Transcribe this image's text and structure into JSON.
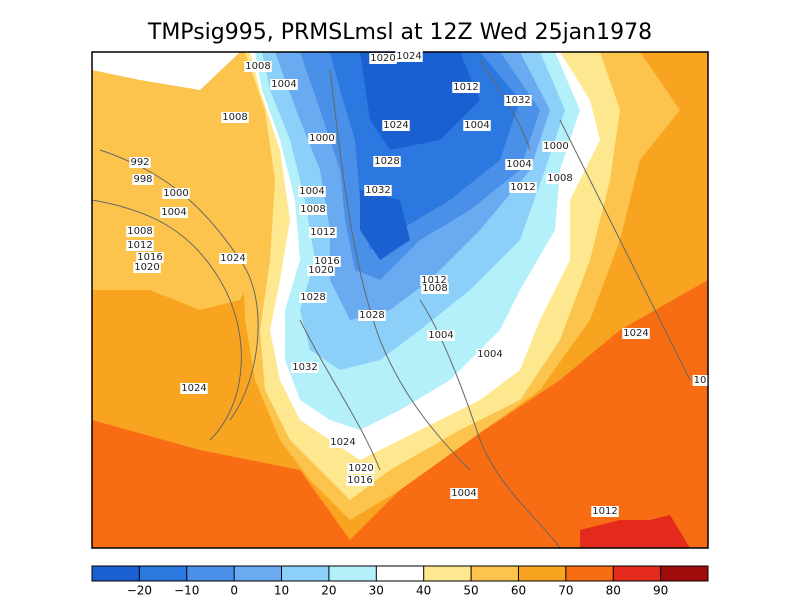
{
  "title": "TMPsig995, PRMSLmsl at 12Z Wed 25jan1978",
  "isobar_labels": [
    "1008",
    "1004",
    "1020",
    "1024",
    "1012",
    "1032",
    "1008",
    "1024",
    "1004",
    "1000",
    "1000",
    "992",
    "1028",
    "1004",
    "998",
    "1008",
    "1000",
    "1012",
    "1032",
    "1004",
    "1004",
    "1008",
    "1012",
    "1008",
    "1012",
    "1016",
    "1020",
    "1024",
    "1016",
    "1020",
    "1012",
    "1008",
    "1028",
    "1028",
    "1004",
    "1024",
    "1004",
    "1032",
    "1024",
    "10",
    "1024",
    "1020",
    "1016",
    "1004",
    "1012"
  ],
  "colorbar": {
    "levels": [
      {
        "value": -20,
        "label": "−20"
      },
      {
        "value": -10,
        "label": "−10"
      },
      0,
      10,
      20,
      30,
      40,
      50,
      60,
      70,
      80,
      90
    ],
    "colors": [
      "#1b60d0",
      "#2a78e0",
      "#4a90e8",
      "#6aaaf0",
      "#8cd0fa",
      "#b4f0fa",
      "#ffffff",
      "#fde890",
      "#fcc44c",
      "#f8a420",
      "#f86c14",
      "#e42a1c",
      "#a00c0c"
    ]
  }
}
